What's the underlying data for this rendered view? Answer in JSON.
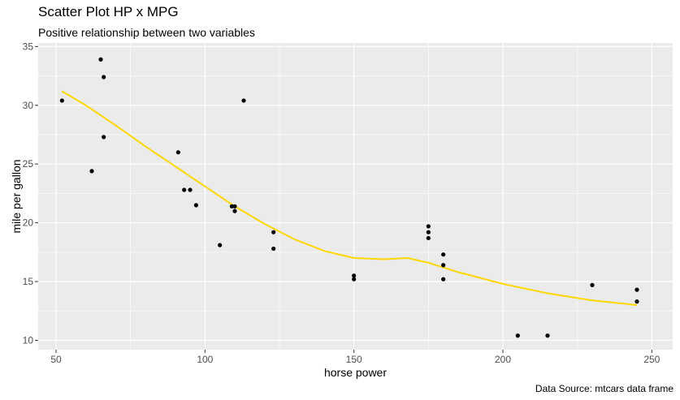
{
  "chart_data": {
    "type": "scatter",
    "title": "Scatter Plot HP x MPG",
    "subtitle": "Positive relationship between two variables",
    "caption": "Data Source: mtcars data frame",
    "xlabel": "horse power",
    "ylabel": "mile per gallon",
    "xlim": [
      44,
      257
    ],
    "ylim": [
      9.2,
      35.3
    ],
    "x_ticks": [
      50,
      100,
      150,
      200,
      250
    ],
    "y_ticks": [
      10,
      15,
      20,
      25,
      30,
      35
    ],
    "grid": true,
    "colors": {
      "panel": "#ebebeb",
      "grid": "#ffffff",
      "points": "#000000",
      "smooth": "#ffd700"
    },
    "points": [
      {
        "x": 52,
        "y": 30.4
      },
      {
        "x": 62,
        "y": 24.4
      },
      {
        "x": 65,
        "y": 33.9
      },
      {
        "x": 66,
        "y": 32.4
      },
      {
        "x": 66,
        "y": 27.3
      },
      {
        "x": 91,
        "y": 26.0
      },
      {
        "x": 93,
        "y": 22.8
      },
      {
        "x": 95,
        "y": 22.8
      },
      {
        "x": 97,
        "y": 21.5
      },
      {
        "x": 105,
        "y": 18.1
      },
      {
        "x": 109,
        "y": 21.4
      },
      {
        "x": 110,
        "y": 21.4
      },
      {
        "x": 110,
        "y": 21.0
      },
      {
        "x": 113,
        "y": 30.4
      },
      {
        "x": 123,
        "y": 19.2
      },
      {
        "x": 123,
        "y": 17.8
      },
      {
        "x": 150,
        "y": 15.5
      },
      {
        "x": 150,
        "y": 15.2
      },
      {
        "x": 175,
        "y": 19.7
      },
      {
        "x": 175,
        "y": 19.2
      },
      {
        "x": 175,
        "y": 18.7
      },
      {
        "x": 180,
        "y": 17.3
      },
      {
        "x": 180,
        "y": 16.4
      },
      {
        "x": 180,
        "y": 15.2
      },
      {
        "x": 205,
        "y": 10.4
      },
      {
        "x": 215,
        "y": 10.4
      },
      {
        "x": 230,
        "y": 14.7
      },
      {
        "x": 245,
        "y": 14.3
      },
      {
        "x": 245,
        "y": 13.3
      }
    ],
    "smooth_line": [
      {
        "x": 52,
        "y": 31.2
      },
      {
        "x": 60,
        "y": 30.0
      },
      {
        "x": 70,
        "y": 28.3
      },
      {
        "x": 80,
        "y": 26.5
      },
      {
        "x": 90,
        "y": 24.8
      },
      {
        "x": 100,
        "y": 23.1
      },
      {
        "x": 110,
        "y": 21.4
      },
      {
        "x": 120,
        "y": 19.9
      },
      {
        "x": 130,
        "y": 18.6
      },
      {
        "x": 140,
        "y": 17.6
      },
      {
        "x": 150,
        "y": 17.0
      },
      {
        "x": 160,
        "y": 16.9
      },
      {
        "x": 168,
        "y": 17.0
      },
      {
        "x": 175,
        "y": 16.6
      },
      {
        "x": 185,
        "y": 15.8
      },
      {
        "x": 200,
        "y": 14.8
      },
      {
        "x": 215,
        "y": 14.0
      },
      {
        "x": 230,
        "y": 13.4
      },
      {
        "x": 245,
        "y": 13.0
      }
    ]
  }
}
